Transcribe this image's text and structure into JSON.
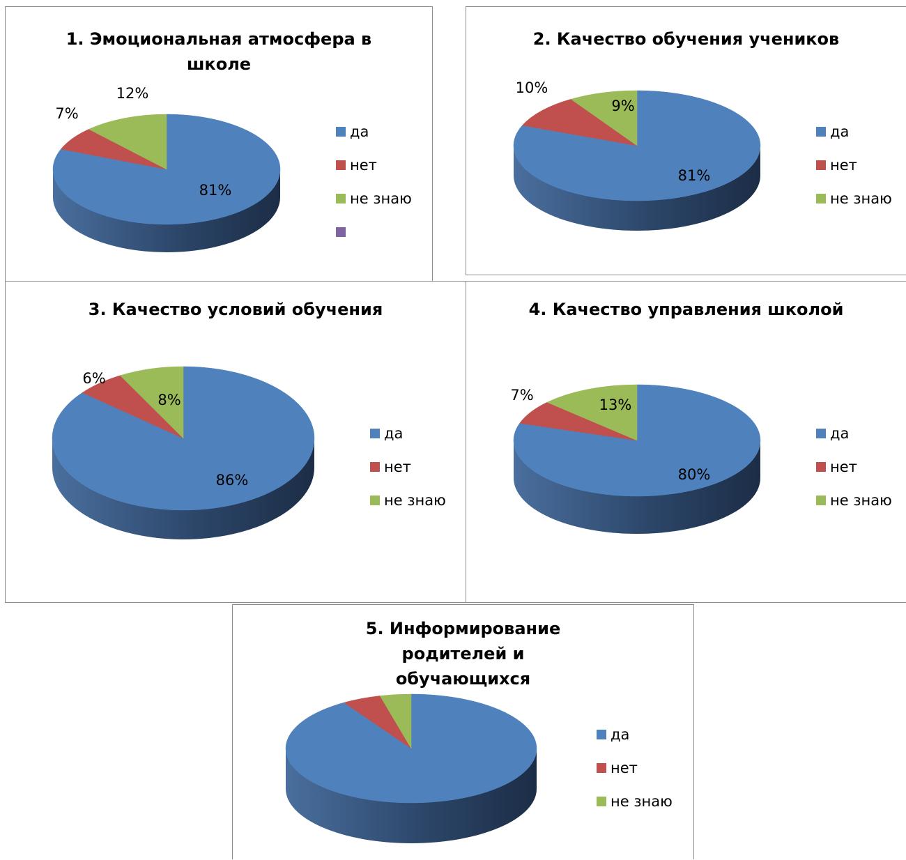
{
  "colors": {
    "yes": "#4f81bd",
    "no": "#c0504d",
    "dontknow": "#9bbb59",
    "extra": "#8064a2"
  },
  "chart_data": [
    {
      "type": "pie",
      "title": "1. Эмоциональная атмосфера в школе",
      "categories": [
        "да",
        "нет",
        "не знаю",
        ""
      ],
      "values": [
        81,
        7,
        12,
        0
      ],
      "data_labels": [
        "81%",
        "7%",
        "12%",
        ""
      ],
      "legend": "right"
    },
    {
      "type": "pie",
      "title": "2. Качество обучения учеников",
      "categories": [
        "да",
        "нет",
        "не знаю"
      ],
      "values": [
        81,
        10,
        9
      ],
      "data_labels": [
        "81%",
        "10%",
        "9%"
      ],
      "legend": "right"
    },
    {
      "type": "pie",
      "title": "3. Качество условий обучения",
      "categories": [
        "да",
        "нет",
        "не знаю"
      ],
      "values": [
        86,
        6,
        8
      ],
      "data_labels": [
        "86%",
        "6%",
        "8%"
      ],
      "legend": "right"
    },
    {
      "type": "pie",
      "title": "4. Качество управления школой",
      "categories": [
        "да",
        "нет",
        "не знаю"
      ],
      "values": [
        80,
        7,
        13
      ],
      "data_labels": [
        "80%",
        "7%",
        "13%"
      ],
      "legend": "right"
    },
    {
      "type": "pie",
      "title": "5. Информирование родителей и обучающихся",
      "categories": [
        "да",
        "нет",
        "не знаю"
      ],
      "values": [
        91,
        5,
        4
      ],
      "data_labels": [
        "",
        "",
        ""
      ],
      "legend": "right"
    }
  ]
}
